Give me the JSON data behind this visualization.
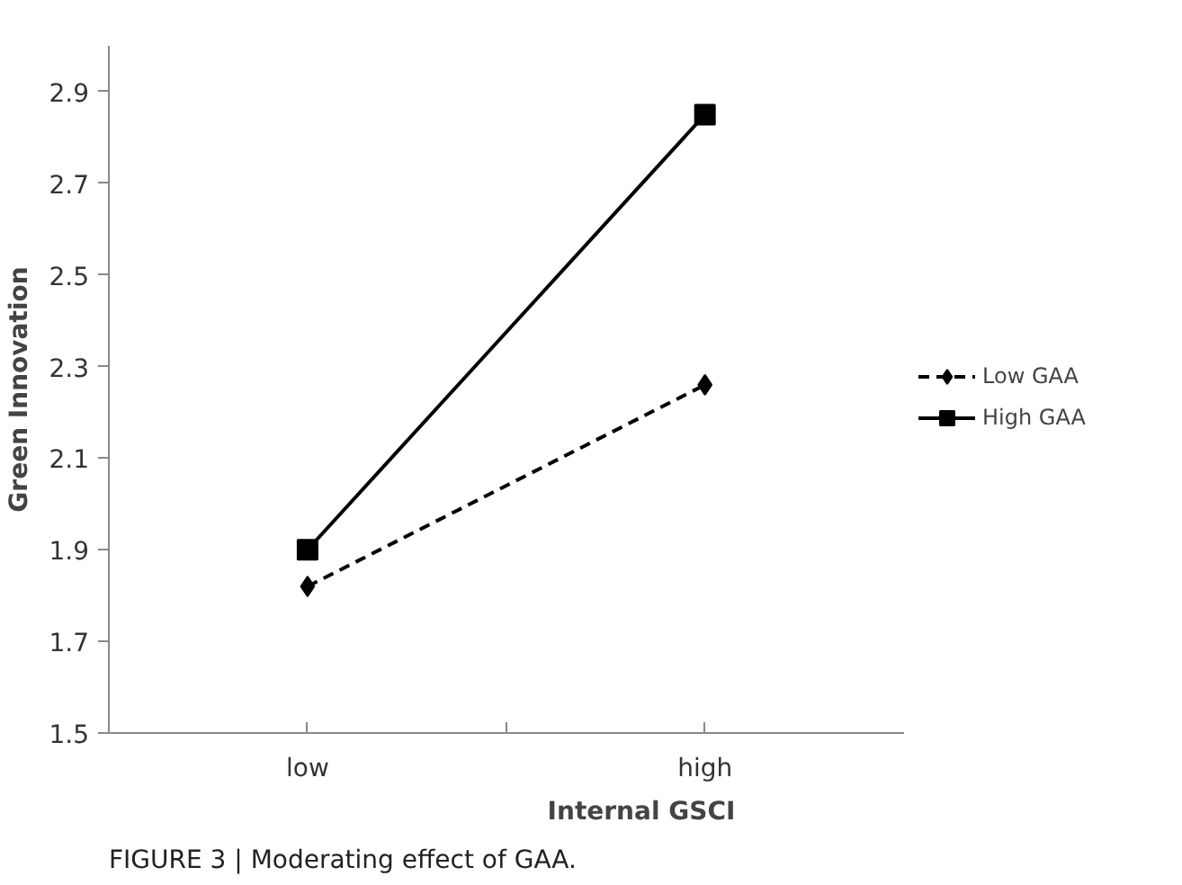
{
  "chart_data": {
    "type": "line",
    "xlabel": "Internal GSCI",
    "ylabel": "Green Innovation",
    "categories": [
      "low",
      "high"
    ],
    "series": [
      {
        "name": "Low GAA",
        "color": "#000000",
        "values": [
          1.82,
          2.26
        ],
        "line_style": "dashed",
        "marker": "diamond"
      },
      {
        "name": "High GAA",
        "color": "#000000",
        "values": [
          1.9,
          2.85
        ],
        "line_style": "solid",
        "marker": "square"
      }
    ],
    "ylim": [
      1.5,
      3.0
    ],
    "yticks": [
      1.5,
      1.7,
      1.9,
      2.1,
      2.3,
      2.5,
      2.7,
      2.9
    ],
    "grid": false,
    "legend": "right",
    "annotations": [
      "FIGURE 3 | Moderating effect of GAA."
    ]
  }
}
